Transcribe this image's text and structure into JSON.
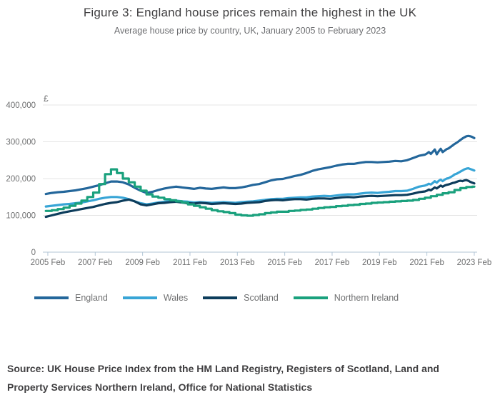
{
  "header": {
    "title": "Figure 3: England house prices remain the highest in the UK",
    "subtitle": "Average house price by country, UK, January 2005 to February 2023"
  },
  "source_note": "Source: UK House Price Index from the HM Land Registry, Registers of Scotland, Land and Property Services Northern Ireland, Office for National Statistics",
  "colors": {
    "title_text": "#414042",
    "muted_text": "#6f7071",
    "gridline": "#e4e4e4",
    "axis_line": "#b3c6d6",
    "england": "#24679b",
    "wales": "#38a5d6",
    "scotland": "#0d3d5c",
    "northern_ireland": "#1aa17d"
  },
  "chart_data": {
    "type": "line",
    "title": "Figure 3: England house prices remain the highest in the UK",
    "subtitle": "Average house price by country, UK, January 2005 to February 2023",
    "grid": "horizontal",
    "legend_position": "bottom",
    "y_axis": {
      "unit_label": "£",
      "ticks": [
        0,
        100000,
        200000,
        300000,
        400000
      ],
      "tick_labels": [
        "0",
        "100,000",
        "200,000",
        "300,000",
        "400,000"
      ],
      "ylim": [
        0,
        400000
      ]
    },
    "x_axis": {
      "description": "months since January 2005",
      "xlim": [
        0,
        217
      ],
      "tick_positions": [
        1,
        25,
        49,
        73,
        97,
        121,
        145,
        169,
        193,
        217
      ],
      "tick_labels": [
        "2005 Feb",
        "2007 Feb",
        "2009 Feb",
        "2011 Feb",
        "2013 Feb",
        "2015 Feb",
        "2017 Feb",
        "2019 Feb",
        "2021 Feb",
        "2023 Feb"
      ]
    },
    "x": [
      0,
      3,
      6,
      9,
      12,
      15,
      18,
      21,
      24,
      27,
      30,
      33,
      36,
      39,
      42,
      45,
      48,
      51,
      54,
      57,
      60,
      63,
      66,
      69,
      72,
      75,
      78,
      81,
      84,
      87,
      90,
      93,
      96,
      99,
      102,
      105,
      108,
      111,
      114,
      117,
      120,
      123,
      126,
      129,
      132,
      135,
      138,
      141,
      144,
      147,
      150,
      153,
      156,
      159,
      162,
      165,
      168,
      171,
      174,
      177,
      180,
      183,
      186,
      189,
      192,
      193,
      194,
      195,
      196,
      197,
      198,
      199,
      200,
      201,
      202,
      203,
      204,
      205,
      206,
      207,
      208,
      209,
      210,
      211,
      212,
      213,
      214,
      215,
      216,
      217
    ],
    "values_unit": "GBP",
    "series": [
      {
        "name": "England",
        "color": "#24679b",
        "step": false,
        "values": [
          158000,
          161000,
          163000,
          164000,
          166000,
          168000,
          171000,
          174000,
          178000,
          182000,
          187000,
          192000,
          192000,
          190000,
          184000,
          175000,
          167000,
          161000,
          164000,
          169000,
          173000,
          176000,
          178000,
          176000,
          174000,
          172000,
          175000,
          173000,
          172000,
          174000,
          176000,
          174000,
          174000,
          176000,
          179000,
          183000,
          185000,
          190000,
          195000,
          198000,
          199000,
          203000,
          207000,
          210000,
          215000,
          221000,
          225000,
          228000,
          231000,
          235000,
          238000,
          240000,
          240000,
          243000,
          245000,
          245000,
          244000,
          245000,
          246000,
          248000,
          247000,
          250000,
          256000,
          262000,
          265000,
          268000,
          272000,
          267000,
          273000,
          279000,
          266000,
          274000,
          281000,
          272000,
          276000,
          280000,
          282000,
          286000,
          290000,
          294000,
          297000,
          301000,
          305000,
          309000,
          312000,
          315000,
          316000,
          315000,
          313000,
          310000
        ]
      },
      {
        "name": "Wales",
        "color": "#38a5d6",
        "step": false,
        "values": [
          124000,
          126000,
          128000,
          130000,
          131000,
          133000,
          135000,
          138000,
          141000,
          145000,
          148000,
          150000,
          150000,
          148000,
          144000,
          138000,
          133000,
          130000,
          132000,
          135000,
          137000,
          139000,
          140000,
          138000,
          137000,
          135000,
          136000,
          135000,
          134000,
          135000,
          136000,
          135000,
          134000,
          136000,
          137000,
          138000,
          140000,
          142000,
          144000,
          145000,
          145000,
          147000,
          148000,
          149000,
          149000,
          151000,
          152000,
          153000,
          152000,
          154000,
          156000,
          157000,
          157000,
          159000,
          161000,
          162000,
          161000,
          163000,
          164000,
          166000,
          166000,
          167000,
          172000,
          178000,
          181000,
          183000,
          186000,
          184000,
          188000,
          193000,
          189000,
          194000,
          197000,
          193000,
          197000,
          200000,
          201000,
          204000,
          207000,
          211000,
          213000,
          216000,
          219000,
          222000,
          225000,
          227000,
          228000,
          226000,
          224000,
          222000
        ]
      },
      {
        "name": "Scotland",
        "color": "#0d3d5c",
        "step": false,
        "values": [
          96000,
          100000,
          104000,
          108000,
          111000,
          114000,
          117000,
          120000,
          123000,
          127000,
          131000,
          134000,
          136000,
          140000,
          143000,
          138000,
          130000,
          127000,
          130000,
          133000,
          134000,
          136000,
          137000,
          135000,
          133000,
          132000,
          134000,
          133000,
          131000,
          132000,
          133000,
          132000,
          131000,
          132000,
          134000,
          135000,
          136000,
          139000,
          141000,
          142000,
          141000,
          143000,
          144000,
          144000,
          143000,
          145000,
          146000,
          146000,
          145000,
          147000,
          149000,
          150000,
          149000,
          151000,
          152000,
          153000,
          152000,
          153000,
          154000,
          155000,
          155000,
          156000,
          159000,
          163000,
          165000,
          167000,
          170000,
          168000,
          172000,
          176000,
          173000,
          177000,
          181000,
          178000,
          181000,
          183000,
          184000,
          186000,
          188000,
          189000,
          191000,
          193000,
          194000,
          193000,
          195000,
          196000,
          194000,
          191000,
          189000,
          187000
        ]
      },
      {
        "name": "Northern Ireland",
        "color": "#1aa17d",
        "step": true,
        "values": [
          112000,
          114000,
          117000,
          121000,
          126000,
          132000,
          140000,
          150000,
          162000,
          185000,
          212000,
          225000,
          215000,
          200000,
          190000,
          178000,
          167000,
          157000,
          151000,
          148000,
          144000,
          141000,
          138000,
          135000,
          130000,
          126000,
          122000,
          118000,
          114000,
          111000,
          109000,
          106000,
          102000,
          100000,
          99000,
          101000,
          103000,
          106000,
          108000,
          110000,
          110000,
          112000,
          113000,
          115000,
          116000,
          118000,
          120000,
          122000,
          123000,
          125000,
          126000,
          128000,
          129000,
          131000,
          132000,
          134000,
          135000,
          136000,
          137000,
          138000,
          139000,
          140000,
          142000,
          145000,
          148000,
          148000,
          148000,
          152000,
          152000,
          152000,
          156000,
          156000,
          156000,
          160000,
          160000,
          160000,
          163000,
          163000,
          163000,
          169000,
          169000,
          169000,
          174000,
          174000,
          174000,
          177000,
          177000,
          177000,
          178000,
          178000
        ]
      }
    ]
  }
}
